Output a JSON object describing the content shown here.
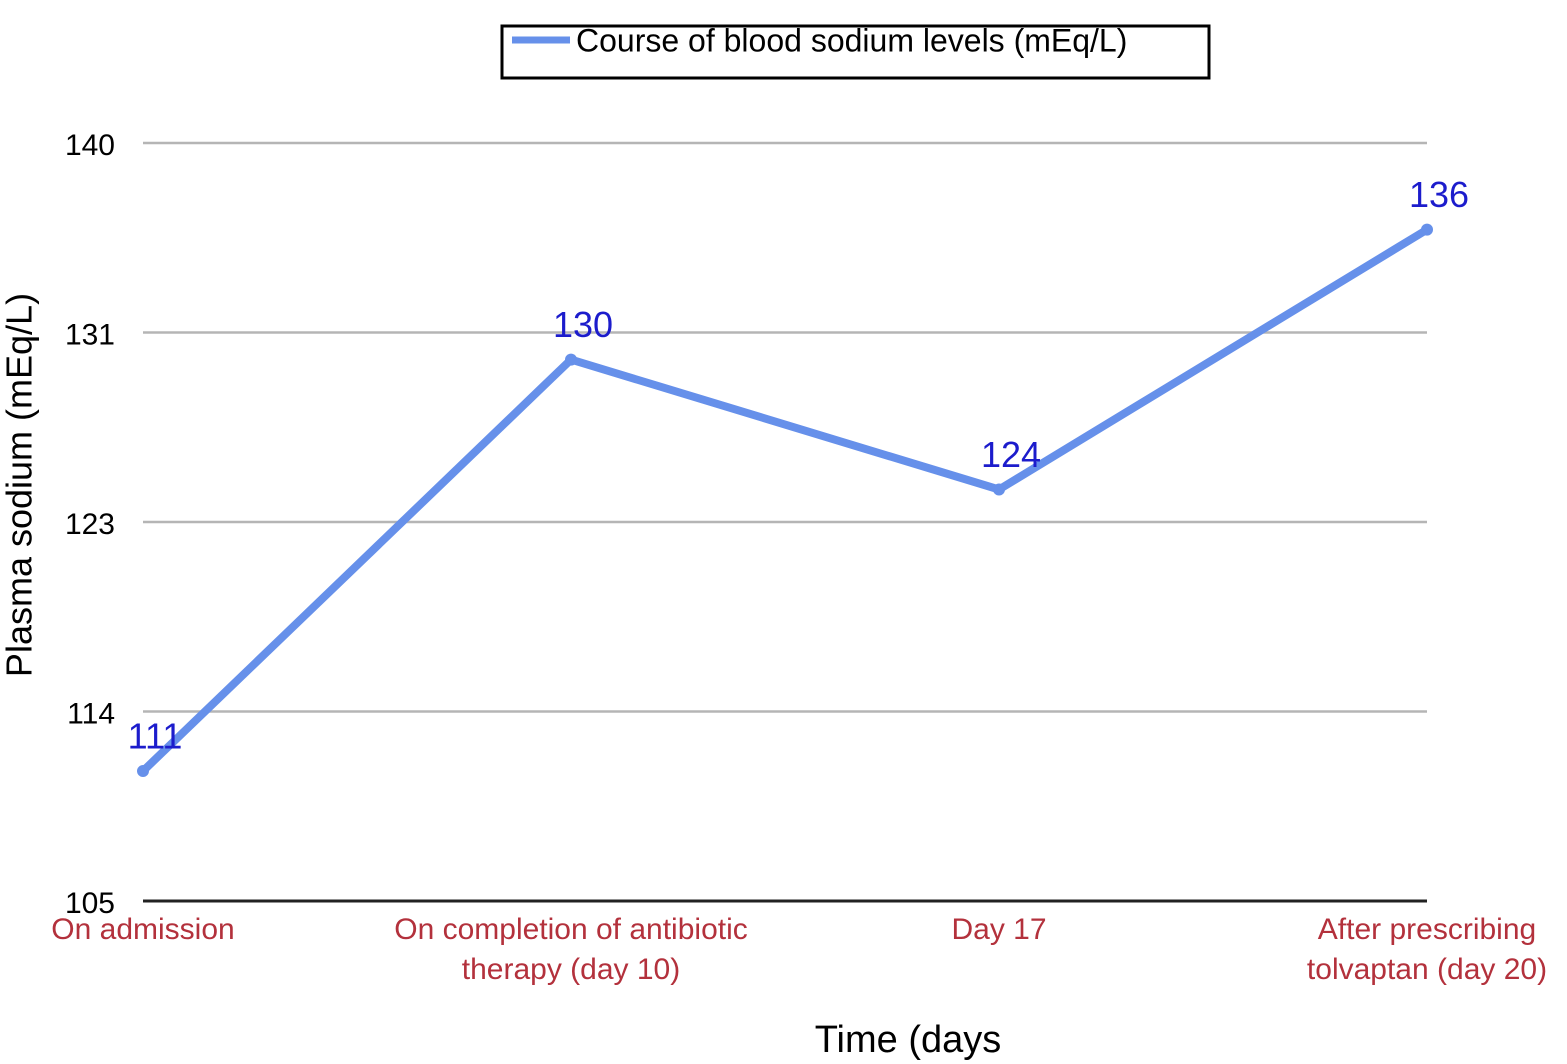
{
  "chart_data": {
    "type": "line",
    "legend": "Course of blood sodium levels (mEq/L)",
    "y_label": "Plasma sodium (mEq/L)",
    "x_label": "Time (days",
    "categories": [
      "On admission",
      "On completion of antibiotic therapy (day 10)",
      "Day 17",
      "After prescribing tolvaptan (day 20)"
    ],
    "series": [
      {
        "name": "Course of blood sodium levels (mEq/L)",
        "color": "#6690ea",
        "values": [
          111,
          130,
          124,
          136
        ]
      }
    ],
    "ylim": [
      105,
      140
    ],
    "yticks": [
      105,
      {
        "value": 113.75,
        "label": "114"
      },
      {
        "value": 122.5,
        "label": "123"
      },
      {
        "value": 131.25,
        "label": "131"
      },
      140
    ],
    "grid": true,
    "legend_position": "top"
  }
}
